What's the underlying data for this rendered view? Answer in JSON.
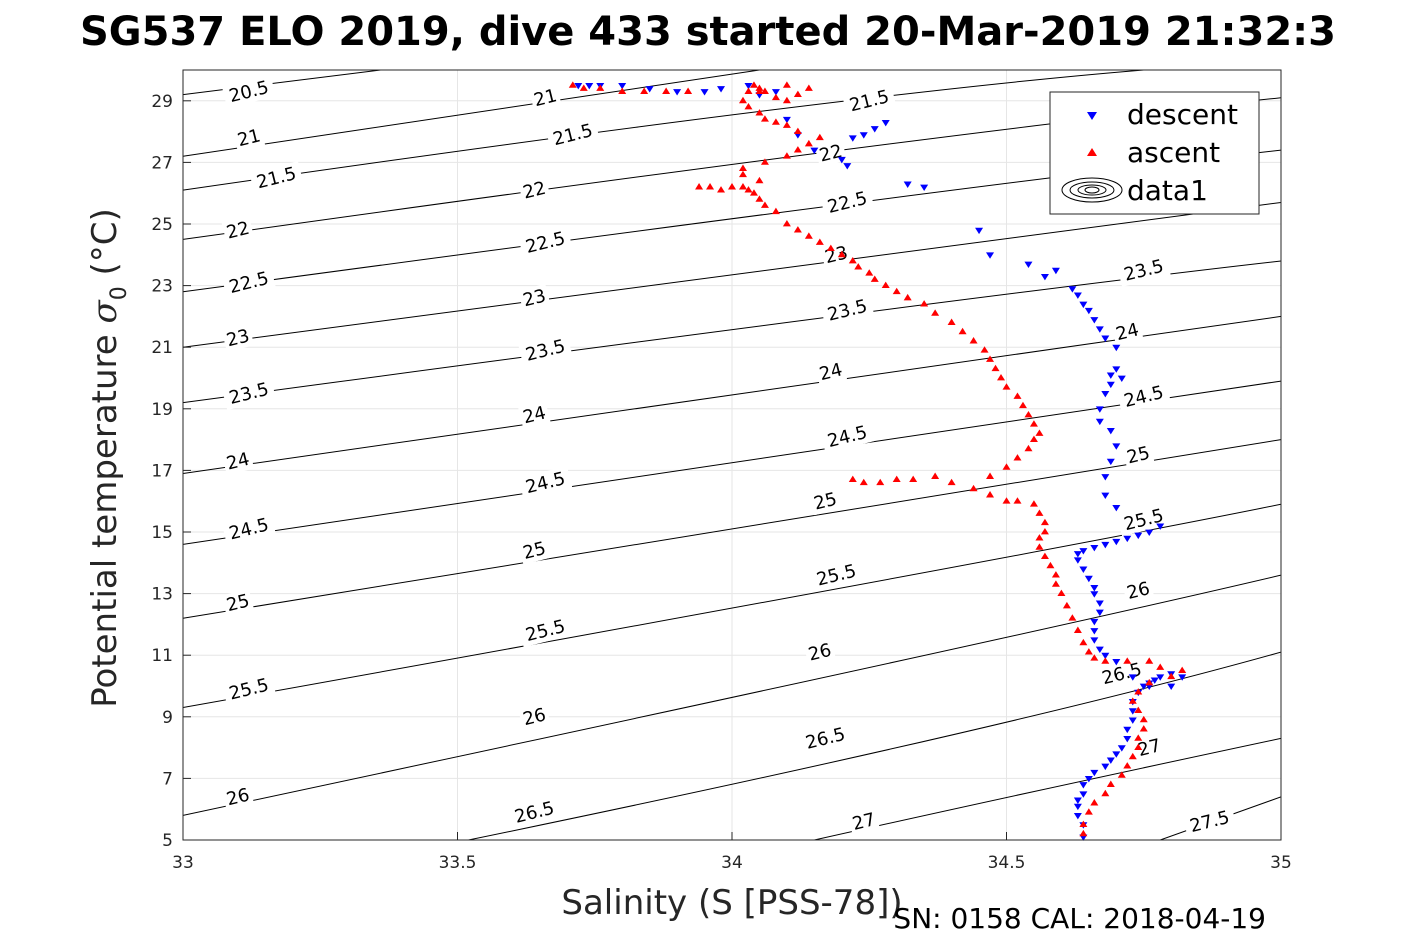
{
  "colors": {
    "descent": "#0000ff",
    "ascent": "#ff0000",
    "contour": "#000000",
    "grid": "#e6e6e6",
    "axis": "#262626"
  },
  "footer": "SN: 0158  CAL: 2018-04-19",
  "chart_data": {
    "type": "scatter",
    "title": "SG537 ELO 2019, dive 433 started 20-Mar-2019 21:32:3",
    "xlabel": "Salinity (S [PSS-78])",
    "ylabel_main": "Potential temperature ",
    "ylabel_sigma": "σ",
    "ylabel_sub": "0",
    "ylabel_unit": " (°C)",
    "xlim": [
      33,
      35
    ],
    "ylim": [
      5,
      30
    ],
    "xticks": [
      33,
      33.5,
      34,
      34.5,
      35
    ],
    "xtick_labels": [
      "33",
      "33.5",
      "34",
      "34.5",
      "35"
    ],
    "yticks": [
      5,
      7,
      9,
      11,
      13,
      15,
      17,
      19,
      21,
      23,
      25,
      27,
      29
    ],
    "ytick_labels": [
      "5",
      "7",
      "9",
      "11",
      "13",
      "15",
      "17",
      "19",
      "21",
      "23",
      "25",
      "27",
      "29"
    ],
    "grid": true,
    "legend": {
      "position": "top-right",
      "entries": [
        {
          "label": "descent",
          "marker": "triangle-down",
          "color": "#0000ff"
        },
        {
          "label": "ascent",
          "marker": "triangle-up",
          "color": "#ff0000"
        },
        {
          "label": "data1",
          "marker": "contour",
          "color": "#000000"
        }
      ]
    },
    "contours": {
      "lines": [
        {
          "level": 20.5,
          "p0": [
            33,
            29.2
          ],
          "p1": [
            33.36,
            30
          ]
        },
        {
          "level": 21,
          "p0": [
            33,
            27.2
          ],
          "p1": [
            34.05,
            30
          ]
        },
        {
          "level": 21.5,
          "p0": [
            33,
            26.1
          ],
          "p1": [
            34.2,
            29.2
          ],
          "p2": [
            34.75,
            30
          ]
        },
        {
          "level": 22,
          "p0": [
            33,
            24.5
          ],
          "p1": [
            34.4,
            28.0
          ],
          "p2": [
            35,
            29.1
          ]
        },
        {
          "level": 22.5,
          "p0": [
            33,
            22.8
          ],
          "p1": [
            34.5,
            26.4
          ],
          "p2": [
            35,
            27.4
          ]
        },
        {
          "level": 23,
          "p0": [
            33,
            21.0
          ],
          "p1": [
            34.5,
            24.5
          ],
          "p2": [
            35,
            25.7
          ]
        },
        {
          "level": 23.5,
          "p0": [
            33,
            19.2
          ],
          "p1": [
            34.5,
            22.8
          ],
          "p2": [
            35,
            23.8
          ]
        },
        {
          "level": 24,
          "p0": [
            33,
            16.9
          ],
          "p1": [
            34.5,
            20.7
          ],
          "p2": [
            35,
            22.0
          ]
        },
        {
          "level": 24.5,
          "p0": [
            33,
            14.6
          ],
          "p1": [
            34.5,
            18.6
          ],
          "p2": [
            35,
            19.9
          ]
        },
        {
          "level": 25,
          "p0": [
            33,
            12.2
          ],
          "p1": [
            34.5,
            16.5
          ],
          "p2": [
            35,
            18.0
          ]
        },
        {
          "level": 25.5,
          "p0": [
            33,
            9.3
          ],
          "p1": [
            34.5,
            14.1
          ],
          "p2": [
            35,
            15.9
          ]
        },
        {
          "level": 26,
          "p0": [
            33,
            5.8
          ],
          "p1": [
            34.5,
            11.5
          ],
          "p2": [
            35,
            13.6
          ]
        },
        {
          "level": 26.5,
          "p0": [
            33.52,
            5
          ],
          "p1": [
            34.5,
            8.6
          ],
          "p2": [
            35,
            11.1
          ]
        },
        {
          "level": 27,
          "p0": [
            34.15,
            5
          ],
          "p1": [
            34.5,
            6.4
          ],
          "p2": [
            35,
            8.3
          ]
        },
        {
          "level": 27.5,
          "p0": [
            34.78,
            5
          ],
          "p1": [
            35,
            6.4
          ]
        }
      ],
      "labels": [
        {
          "text": "20.5",
          "x": 33.12,
          "y": 29.3
        },
        {
          "text": "21",
          "x": 33.12,
          "y": 27.8
        },
        {
          "text": "21",
          "x": 33.66,
          "y": 29.1
        },
        {
          "text": "21.5",
          "x": 33.17,
          "y": 26.5
        },
        {
          "text": "21.5",
          "x": 33.71,
          "y": 27.9
        },
        {
          "text": "21.5",
          "x": 34.25,
          "y": 29.0
        },
        {
          "text": "22",
          "x": 33.1,
          "y": 24.8
        },
        {
          "text": "22",
          "x": 33.64,
          "y": 26.1
        },
        {
          "text": "22",
          "x": 34.18,
          "y": 27.3
        },
        {
          "text": "22.5",
          "x": 33.12,
          "y": 23.1
        },
        {
          "text": "22.5",
          "x": 33.66,
          "y": 24.4
        },
        {
          "text": "22.5",
          "x": 34.21,
          "y": 25.7
        },
        {
          "text": "23",
          "x": 33.1,
          "y": 21.3
        },
        {
          "text": "23",
          "x": 33.64,
          "y": 22.6
        },
        {
          "text": "23",
          "x": 34.19,
          "y": 24.0
        },
        {
          "text": "23.5",
          "x": 33.12,
          "y": 19.5
        },
        {
          "text": "23.5",
          "x": 33.66,
          "y": 20.9
        },
        {
          "text": "23.5",
          "x": 34.21,
          "y": 22.2
        },
        {
          "text": "23.5",
          "x": 34.75,
          "y": 23.5
        },
        {
          "text": "24",
          "x": 33.1,
          "y": 17.3
        },
        {
          "text": "24",
          "x": 33.64,
          "y": 18.8
        },
        {
          "text": "24",
          "x": 34.18,
          "y": 20.2
        },
        {
          "text": "24",
          "x": 34.72,
          "y": 21.5
        },
        {
          "text": "24.5",
          "x": 33.12,
          "y": 15.1
        },
        {
          "text": "24.5",
          "x": 33.66,
          "y": 16.6
        },
        {
          "text": "24.5",
          "x": 34.21,
          "y": 18.1
        },
        {
          "text": "24.5",
          "x": 34.75,
          "y": 19.4
        },
        {
          "text": "25",
          "x": 33.1,
          "y": 12.7
        },
        {
          "text": "25",
          "x": 33.64,
          "y": 14.4
        },
        {
          "text": "25",
          "x": 34.17,
          "y": 16.0
        },
        {
          "text": "25",
          "x": 34.74,
          "y": 17.5
        },
        {
          "text": "25.5",
          "x": 33.12,
          "y": 9.9
        },
        {
          "text": "25.5",
          "x": 33.66,
          "y": 11.8
        },
        {
          "text": "25.5",
          "x": 34.19,
          "y": 13.6
        },
        {
          "text": "25.5",
          "x": 34.75,
          "y": 15.4
        },
        {
          "text": "26",
          "x": 33.1,
          "y": 6.4
        },
        {
          "text": "26",
          "x": 33.64,
          "y": 9.0
        },
        {
          "text": "26",
          "x": 34.16,
          "y": 11.1
        },
        {
          "text": "26",
          "x": 34.74,
          "y": 13.1
        },
        {
          "text": "26.5",
          "x": 33.64,
          "y": 5.9
        },
        {
          "text": "26.5",
          "x": 34.17,
          "y": 8.3
        },
        {
          "text": "26.5",
          "x": 34.71,
          "y": 10.4
        },
        {
          "text": "27",
          "x": 34.24,
          "y": 5.6
        },
        {
          "text": "27",
          "x": 34.76,
          "y": 8.0
        },
        {
          "text": "27.5",
          "x": 34.87,
          "y": 5.6
        }
      ]
    },
    "series": [
      {
        "name": "descent",
        "marker": "triangle-down",
        "x": [
          34.64,
          34.64,
          34.63,
          34.63,
          34.63,
          34.64,
          34.64,
          34.65,
          34.66,
          34.68,
          34.69,
          34.7,
          34.71,
          34.72,
          34.72,
          34.73,
          34.73,
          34.73,
          34.74,
          34.75,
          34.76,
          34.77,
          34.78,
          34.8,
          34.82,
          34.8,
          34.76,
          34.73,
          34.7,
          34.68,
          34.67,
          34.66,
          34.66,
          34.66,
          34.67,
          34.67,
          34.66,
          34.66,
          34.65,
          34.64,
          34.63,
          34.63,
          34.64,
          34.66,
          34.68,
          34.7,
          34.72,
          34.74,
          34.76,
          34.78,
          34.7,
          34.68,
          34.68,
          34.69,
          34.7,
          34.69,
          34.67,
          34.67,
          34.68,
          34.69,
          34.69,
          34.7,
          34.71,
          34.7,
          34.68,
          34.67,
          34.66,
          34.65,
          34.64,
          34.63,
          34.62,
          34.59,
          34.57,
          34.54,
          34.47,
          34.45,
          34.35,
          34.32,
          34.28,
          34.26,
          34.24,
          34.22,
          34.2,
          34.21,
          34.15,
          34.12,
          34.1,
          34.08,
          34.05,
          34.03,
          33.98,
          33.95,
          33.9,
          33.85,
          33.8,
          33.76,
          33.74,
          33.72
        ],
        "y": [
          5.1,
          5.5,
          5.8,
          6.1,
          6.3,
          6.5,
          6.8,
          7.0,
          7.2,
          7.4,
          7.6,
          7.8,
          8.0,
          8.3,
          8.6,
          8.9,
          9.2,
          9.5,
          9.8,
          10.0,
          10.1,
          10.2,
          10.3,
          10.4,
          10.3,
          10.0,
          10.0,
          10.3,
          10.8,
          11.0,
          11.2,
          11.5,
          11.8,
          12.1,
          12.4,
          12.7,
          13.0,
          13.2,
          13.5,
          13.8,
          14.1,
          14.3,
          14.4,
          14.5,
          14.6,
          14.7,
          14.8,
          14.9,
          15.0,
          15.2,
          15.8,
          16.2,
          16.8,
          17.3,
          17.8,
          18.3,
          18.6,
          19.0,
          19.5,
          19.8,
          20.1,
          20.3,
          20.0,
          21.0,
          21.3,
          21.6,
          21.9,
          22.2,
          22.4,
          22.7,
          22.9,
          23.5,
          23.3,
          23.7,
          24.0,
          24.8,
          26.2,
          26.3,
          28.3,
          28.1,
          27.9,
          27.8,
          27.1,
          26.9,
          27.4,
          27.9,
          28.4,
          29.3,
          29.2,
          29.5,
          29.4,
          29.3,
          29.3,
          29.4,
          29.5,
          29.5,
          29.5,
          29.5
        ]
      },
      {
        "name": "ascent",
        "marker": "triangle-up",
        "x": [
          34.64,
          34.64,
          34.65,
          34.66,
          34.68,
          34.69,
          34.71,
          34.72,
          34.73,
          34.74,
          34.74,
          34.75,
          34.75,
          34.74,
          34.73,
          34.74,
          34.76,
          34.8,
          34.82,
          34.78,
          34.76,
          34.72,
          34.68,
          34.66,
          34.65,
          34.64,
          34.63,
          34.62,
          34.61,
          34.6,
          34.59,
          34.59,
          34.58,
          34.57,
          34.56,
          34.56,
          34.57,
          34.57,
          34.56,
          34.55,
          34.52,
          34.5,
          34.47,
          34.44,
          34.4,
          34.37,
          34.33,
          34.3,
          34.27,
          34.24,
          34.22,
          34.47,
          34.5,
          34.52,
          34.54,
          34.55,
          34.56,
          34.55,
          34.54,
          34.53,
          34.52,
          34.5,
          34.49,
          34.48,
          34.47,
          34.46,
          34.44,
          34.42,
          34.4,
          34.37,
          34.35,
          34.32,
          34.3,
          34.28,
          34.26,
          34.25,
          34.23,
          34.22,
          34.2,
          34.18,
          34.16,
          34.14,
          34.12,
          34.1,
          34.08,
          34.06,
          34.05,
          34.04,
          34.03,
          34.02,
          34.0,
          33.98,
          33.96,
          33.94,
          34.05,
          34.02,
          34.02,
          34.06,
          34.1,
          34.12,
          34.14,
          34.16,
          34.12,
          34.1,
          34.08,
          34.06,
          34.05,
          34.03,
          34.02,
          34.03,
          34.04,
          34.05,
          34.06,
          34.08,
          34.1,
          34.12,
          34.14,
          34.1,
          34.05,
          33.92,
          33.88,
          33.84,
          33.8,
          33.76,
          33.73,
          33.71
        ],
        "y": [
          5.2,
          5.5,
          5.9,
          6.2,
          6.5,
          6.8,
          7.1,
          7.4,
          7.7,
          8.0,
          8.3,
          8.6,
          8.9,
          9.2,
          9.5,
          9.8,
          10.1,
          10.3,
          10.5,
          10.6,
          10.8,
          10.8,
          10.8,
          10.9,
          11.1,
          11.4,
          11.8,
          12.2,
          12.6,
          13.0,
          13.3,
          13.6,
          13.9,
          14.2,
          14.5,
          14.8,
          15.0,
          15.3,
          15.6,
          15.9,
          16.0,
          16.0,
          16.2,
          16.4,
          16.6,
          16.8,
          16.7,
          16.7,
          16.6,
          16.6,
          16.7,
          16.8,
          17.1,
          17.4,
          17.7,
          18.0,
          18.2,
          18.5,
          18.8,
          19.1,
          19.4,
          19.7,
          20.0,
          20.3,
          20.6,
          20.9,
          21.2,
          21.5,
          21.8,
          22.1,
          22.4,
          22.6,
          22.8,
          23.0,
          23.2,
          23.4,
          23.6,
          23.8,
          24.0,
          24.2,
          24.4,
          24.6,
          24.8,
          25.0,
          25.4,
          25.6,
          25.8,
          26.0,
          26.1,
          26.2,
          26.2,
          26.1,
          26.2,
          26.2,
          26.4,
          26.6,
          26.8,
          27.0,
          27.2,
          27.4,
          27.6,
          27.8,
          28.0,
          28.2,
          28.3,
          28.4,
          28.6,
          28.8,
          29.0,
          29.3,
          29.5,
          29.4,
          29.3,
          29.1,
          29.0,
          29.2,
          29.4,
          29.5,
          29.3,
          29.3,
          29.3,
          29.3,
          29.3,
          29.4,
          29.4,
          29.5
        ]
      }
    ]
  }
}
